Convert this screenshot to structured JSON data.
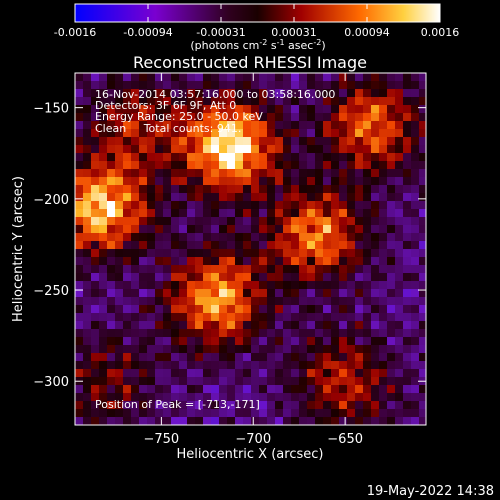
{
  "chart_data": {
    "type": "heatmap",
    "title": "Reconstructed RHESSI Image",
    "xlabel": "Heliocentric X (arcsec)",
    "ylabel": "Heliocentric Y (arcsec)",
    "xlim": [
      -797,
      -606
    ],
    "ylim": [
      -324,
      -131
    ],
    "x_ticks": [
      -750,
      -700,
      -650
    ],
    "y_ticks": [
      -150,
      -200,
      -250,
      -300
    ],
    "colorbar": {
      "range": [
        -0.0016,
        0.0016
      ],
      "ticks": [
        "-0.0016",
        "-0.00094",
        "-0.00031",
        "0.00031",
        "0.00094",
        "0.0016"
      ],
      "unit_parts": [
        "(photons cm",
        "-2",
        " s",
        "-1",
        " asec",
        "-2",
        ")"
      ],
      "colors": [
        "#0000ff",
        "#9400d3",
        "#1a0000",
        "#cc0000",
        "#ff8800",
        "#ffff66",
        "#ffffff"
      ]
    },
    "annotations": [
      "16-Nov-2014 03:57:16.000 to 03:58:16.000",
      "Detectors: 3F 6F 9F, Att 0",
      "Energy Range: 25.0 - 50.0 keV",
      "Clean     Total counts: 941.",
      "Position of Peak = [-713,-171]"
    ],
    "sources": [
      {
        "x": -713,
        "y": -171,
        "intensity": 1.0
      },
      {
        "x": -782,
        "y": -205,
        "intensity": 0.85
      },
      {
        "x": -720,
        "y": -255,
        "intensity": 0.8
      },
      {
        "x": -665,
        "y": -220,
        "intensity": 0.7
      },
      {
        "x": -635,
        "y": -160,
        "intensity": 0.65
      },
      {
        "x": -650,
        "y": -300,
        "intensity": 0.5
      },
      {
        "x": -765,
        "y": -160,
        "intensity": 0.45
      },
      {
        "x": -780,
        "y": -300,
        "intensity": 0.35
      }
    ]
  },
  "footer": {
    "timestamp": "19-May-2022 14:38"
  }
}
